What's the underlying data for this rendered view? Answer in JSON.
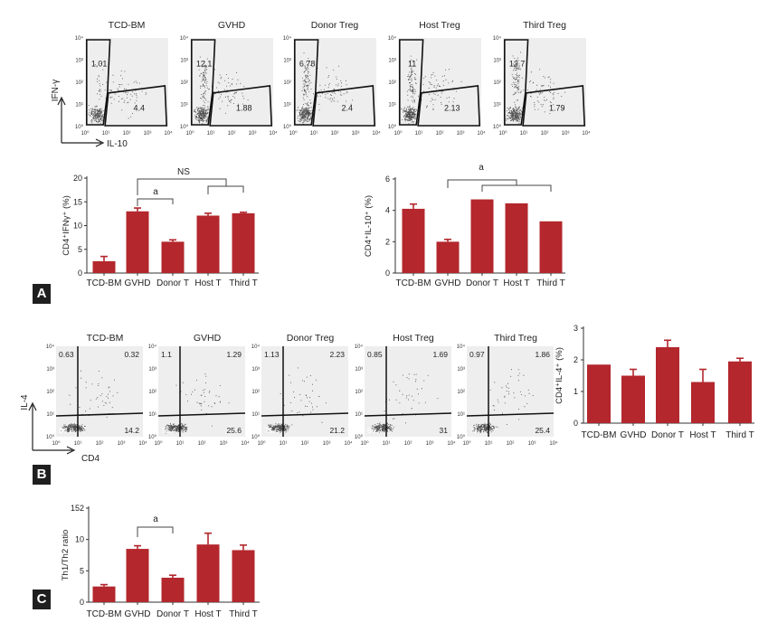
{
  "panel_labels": [
    "A",
    "B",
    "C"
  ],
  "colors": {
    "bar": "#b3272d",
    "plot_bg": "#eeeeee",
    "dots": "#1a1a1a"
  },
  "flow_A": {
    "titles": [
      "TCD-BM",
      "GVHD",
      "Donor Treg",
      "Host Treg",
      "Third Treg"
    ],
    "upper_values": [
      "1.01",
      "12.1",
      "6.78",
      "11",
      "12.7"
    ],
    "lower_values": [
      "4.4",
      "1.88",
      "2.4",
      "2.13",
      "1.79"
    ],
    "tick_labels": [
      "10⁰",
      "10¹",
      "10²",
      "10³",
      "10⁴"
    ],
    "y_axis_label": "IFN-γ",
    "x_axis_label": "IL-10"
  },
  "flow_B": {
    "titles": [
      "TCD-BM",
      "GVHD",
      "Donor Treg",
      "Host Treg",
      "Third Treg"
    ],
    "quadrants": [
      {
        "ul": "0.63",
        "ur": "0.32",
        "ll": "84.8",
        "lr": "14.2"
      },
      {
        "ul": "1.1",
        "ur": "1.29",
        "ll": "71.4",
        "lr": "25.6"
      },
      {
        "ul": "1.13",
        "ur": "2.23",
        "ll": "75.5",
        "lr": "21.2"
      },
      {
        "ul": "0.85",
        "ur": "1.69",
        "ll": "66.4",
        "lr": "31"
      },
      {
        "ul": "0.97",
        "ur": "1.86",
        "ll": "71.7",
        "lr": "25.4"
      }
    ],
    "tick_labels": [
      "10⁰",
      "10¹",
      "10²",
      "10³",
      "10⁴"
    ],
    "y_axis_label": "IL-4",
    "x_axis_label": "CD4"
  },
  "chart_data": [
    {
      "id": "A-IFNg",
      "type": "bar",
      "categories": [
        "TCD-BM",
        "GVHD",
        "Donor T",
        "Host T",
        "Third T"
      ],
      "values": [
        2.5,
        13,
        6.6,
        12.1,
        12.6
      ],
      "errors": [
        1.0,
        0.7,
        0.4,
        0.5,
        0.2
      ],
      "ylabel": "CD4⁺IFNγ⁺ (%)",
      "ylim": [
        0,
        20
      ],
      "yticks": [
        0,
        5,
        10,
        15,
        20
      ],
      "annotations": [
        {
          "text": "NS",
          "from": 1,
          "to": [
            3,
            4
          ]
        },
        {
          "text": "a",
          "from": 1,
          "to": [
            2
          ]
        }
      ]
    },
    {
      "id": "A-IL10",
      "type": "bar",
      "categories": [
        "TCD-BM",
        "GVHD",
        "Donor T",
        "Host T",
        "Third T"
      ],
      "values": [
        4.1,
        2.0,
        4.7,
        4.45,
        3.3
      ],
      "errors": [
        0.3,
        0.15,
        0,
        0,
        0
      ],
      "ylabel": "CD4⁺IL-10⁺ (%)",
      "ylim": [
        0,
        6
      ],
      "yticks": [
        0,
        2,
        4,
        6
      ],
      "annotations": [
        {
          "text": "a",
          "from": 1,
          "to": [
            2,
            3,
            4
          ]
        }
      ]
    },
    {
      "id": "B-IL4",
      "type": "bar",
      "categories": [
        "TCD-BM",
        "GVHD",
        "Donor T",
        "Host T",
        "Third T"
      ],
      "values": [
        1.85,
        1.5,
        2.4,
        1.3,
        1.95
      ],
      "errors": [
        0,
        0.2,
        0.22,
        0.4,
        0.1
      ],
      "ylabel": "CD4⁺IL-4⁺ (%)",
      "ylim": [
        0,
        3
      ],
      "yticks": [
        0,
        1,
        2,
        3
      ],
      "annotations": []
    },
    {
      "id": "C-ratio",
      "type": "bar",
      "categories": [
        "TCD-BM",
        "GVHD",
        "Donor T",
        "Host T",
        "Third T"
      ],
      "values": [
        2.5,
        8.5,
        3.9,
        9.2,
        8.3
      ],
      "errors": [
        0.3,
        0.5,
        0.4,
        1.8,
        0.8
      ],
      "ylabel": "Th1/Th2 ratio",
      "ylim": [
        0,
        15
      ],
      "yticks": [
        0,
        5,
        10
      ],
      "ytick_top_label": "152",
      "annotations": [
        {
          "text": "a",
          "from": 1,
          "to": [
            2
          ]
        }
      ]
    }
  ]
}
